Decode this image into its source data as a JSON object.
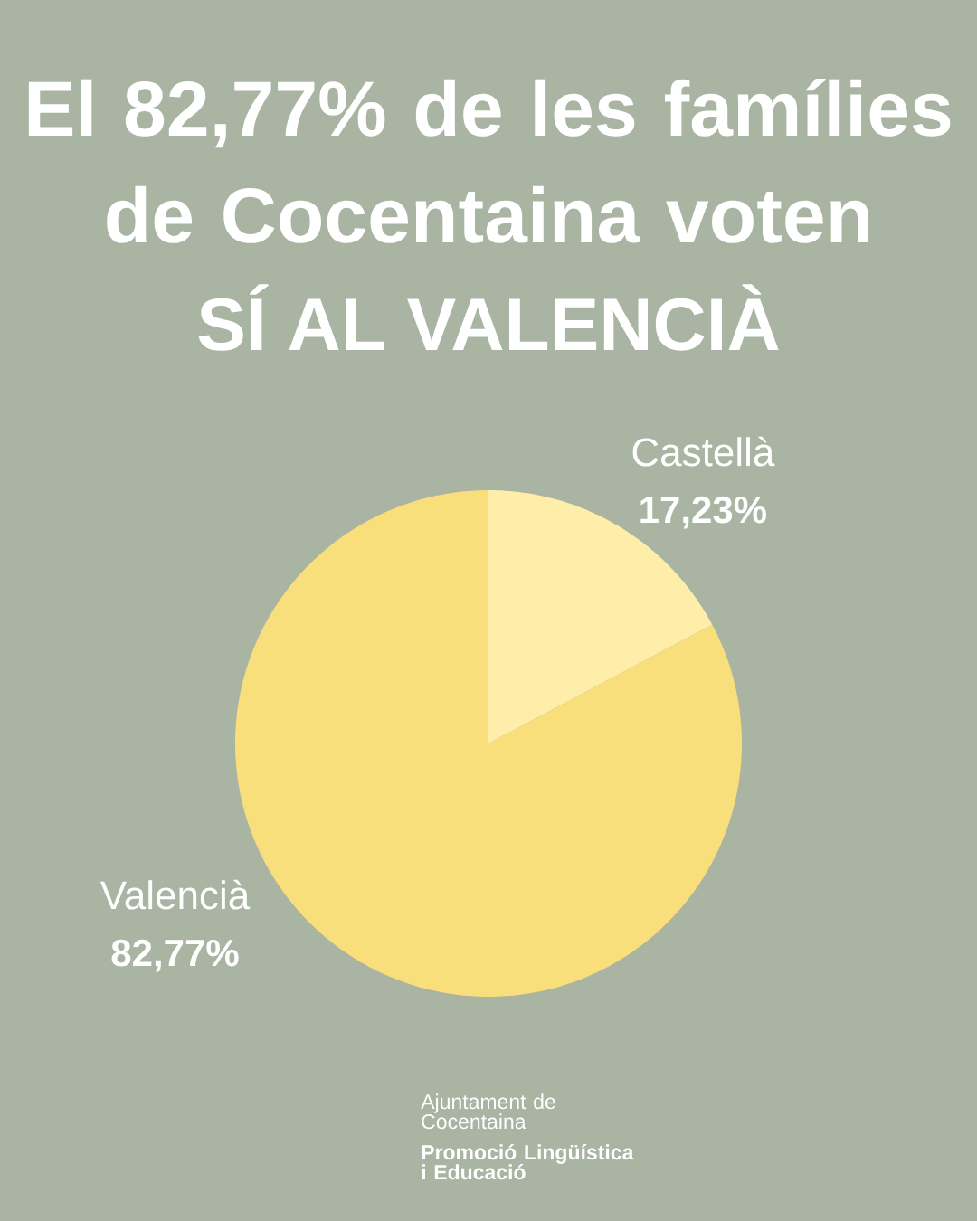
{
  "chart_data": {
    "type": "pie",
    "title": "El 82,77% de les famílies de Cocentaina voten",
    "subtitle": "SÍ AL VALENCIÀ",
    "categories": [
      "Castellà",
      "Valencià"
    ],
    "values": [
      17.23,
      82.77
    ],
    "colors": [
      "#feeeaa",
      "#f9df7b"
    ],
    "value_labels": [
      "17,23%",
      "82,77%"
    ],
    "annotations": [
      "Ajuntament de Cocentaina",
      "Promoció Lingüística i Educació"
    ]
  }
}
